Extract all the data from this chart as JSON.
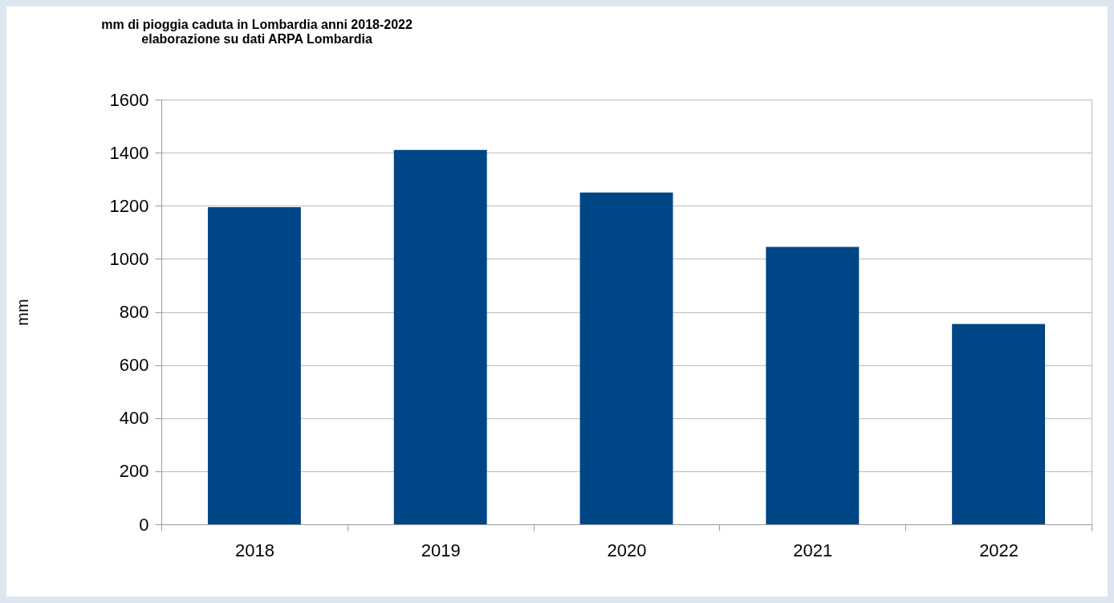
{
  "chart_data": {
    "type": "bar",
    "title": "mm di pioggia caduta in Lombardia anni 2018-2022",
    "subtitle": "elaborazione su dati ARPA Lombardia",
    "ylabel": "mm",
    "categories": [
      "2018",
      "2019",
      "2020",
      "2021",
      "2022"
    ],
    "values": [
      1195,
      1410,
      1250,
      1045,
      755
    ],
    "color": "#004586",
    "ylim": [
      0,
      1600
    ],
    "yticks": [
      0,
      200,
      400,
      600,
      800,
      1000,
      1200,
      1400,
      1600
    ],
    "grid": "y"
  }
}
